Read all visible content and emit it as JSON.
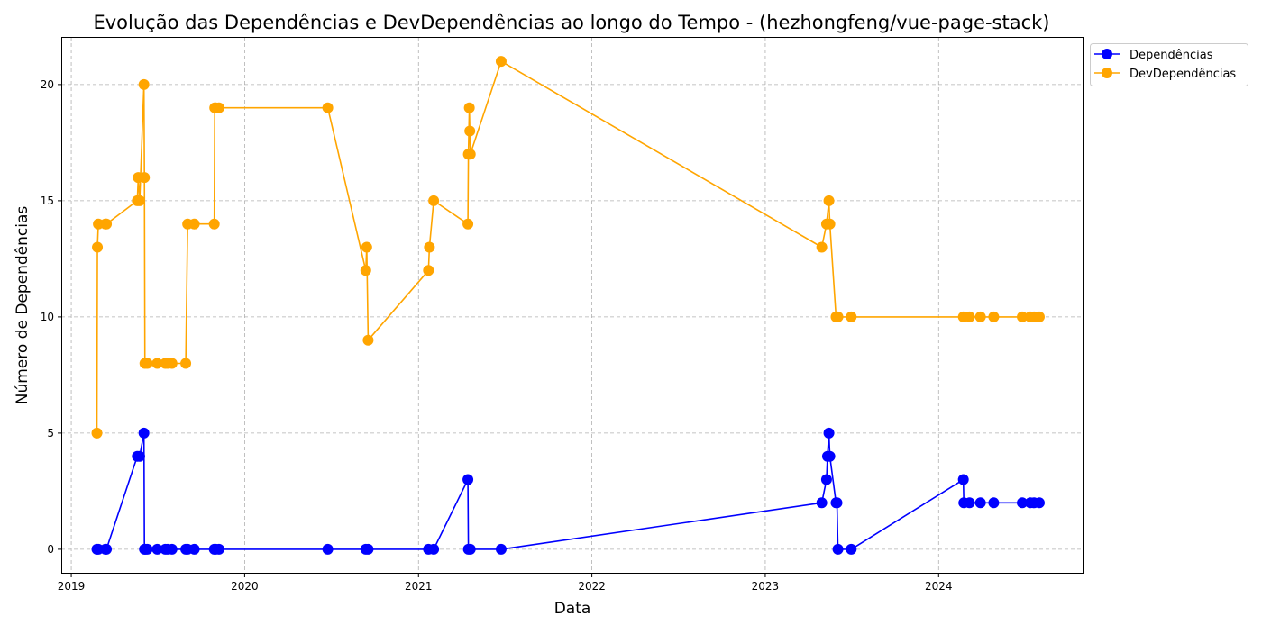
{
  "chart_data": {
    "type": "line",
    "title": "Evolução das Dependências e DevDependências ao longo do Tempo - (hezhongfeng/vue-page-stack)",
    "xlabel": "Data",
    "ylabel": "Número de Dependências",
    "x_ticks": [
      "2019",
      "2020",
      "2021",
      "2022",
      "2023",
      "2024"
    ],
    "y_ticks": [
      0,
      5,
      10,
      15,
      20
    ],
    "xlim": [
      "2018-12-11",
      "2024-11-01"
    ],
    "ylim": [
      -1.05,
      22.05
    ],
    "grid": true,
    "legend_position": "top-right (outside plot)",
    "series": [
      {
        "name": "Dependências",
        "color": "#0000ff",
        "points": [
          [
            "2019-02-24",
            0
          ],
          [
            "2019-02-27",
            0
          ],
          [
            "2019-03-14",
            0
          ],
          [
            "2019-03-16",
            0
          ],
          [
            "2019-05-20",
            4
          ],
          [
            "2019-05-25",
            4
          ],
          [
            "2019-06-03",
            5
          ],
          [
            "2019-06-04",
            0
          ],
          [
            "2019-06-06",
            0
          ],
          [
            "2019-06-10",
            0
          ],
          [
            "2019-07-01",
            0
          ],
          [
            "2019-07-18",
            0
          ],
          [
            "2019-07-23",
            0
          ],
          [
            "2019-08-01",
            0
          ],
          [
            "2019-08-30",
            0
          ],
          [
            "2019-09-03",
            0
          ],
          [
            "2019-09-17",
            0
          ],
          [
            "2019-10-29",
            0
          ],
          [
            "2019-11-01",
            0
          ],
          [
            "2019-11-08",
            0
          ],
          [
            "2020-06-24",
            0
          ],
          [
            "2020-09-12",
            0
          ],
          [
            "2020-09-17",
            0
          ],
          [
            "2021-01-22",
            0
          ],
          [
            "2021-02-02",
            0
          ],
          [
            "2021-04-15",
            3
          ],
          [
            "2021-04-16",
            0
          ],
          [
            "2021-04-20",
            0
          ],
          [
            "2021-06-24",
            0
          ],
          [
            "2023-04-30",
            2
          ],
          [
            "2023-05-10",
            3
          ],
          [
            "2023-05-12",
            4
          ],
          [
            "2023-05-15",
            5
          ],
          [
            "2023-05-17",
            4
          ],
          [
            "2023-05-30",
            2
          ],
          [
            "2023-06-01",
            2
          ],
          [
            "2023-06-03",
            0
          ],
          [
            "2023-07-01",
            0
          ],
          [
            "2024-02-22",
            3
          ],
          [
            "2024-02-23",
            2
          ],
          [
            "2024-03-06",
            2
          ],
          [
            "2024-03-29",
            2
          ],
          [
            "2024-04-26",
            2
          ],
          [
            "2024-06-25",
            2
          ],
          [
            "2024-07-12",
            2
          ],
          [
            "2024-07-20",
            2
          ],
          [
            "2024-07-31",
            2
          ]
        ]
      },
      {
        "name": "DevDependências",
        "color": "#ffa500",
        "points": [
          [
            "2019-02-24",
            5
          ],
          [
            "2019-02-25",
            13
          ],
          [
            "2019-02-27",
            14
          ],
          [
            "2019-03-14",
            14
          ],
          [
            "2019-03-16",
            14
          ],
          [
            "2019-05-20",
            15
          ],
          [
            "2019-05-22",
            16
          ],
          [
            "2019-05-25",
            15
          ],
          [
            "2019-06-03",
            20
          ],
          [
            "2019-06-04",
            16
          ],
          [
            "2019-06-05",
            8
          ],
          [
            "2019-06-10",
            8
          ],
          [
            "2019-07-01",
            8
          ],
          [
            "2019-07-18",
            8
          ],
          [
            "2019-07-23",
            8
          ],
          [
            "2019-08-01",
            8
          ],
          [
            "2019-08-30",
            8
          ],
          [
            "2019-09-03",
            14
          ],
          [
            "2019-09-17",
            14
          ],
          [
            "2019-10-29",
            14
          ],
          [
            "2019-10-30",
            19
          ],
          [
            "2019-11-01",
            19
          ],
          [
            "2019-11-08",
            19
          ],
          [
            "2020-06-24",
            19
          ],
          [
            "2020-09-12",
            12
          ],
          [
            "2020-09-14",
            13
          ],
          [
            "2020-09-17",
            9
          ],
          [
            "2021-01-22",
            12
          ],
          [
            "2021-01-24",
            13
          ],
          [
            "2021-02-02",
            15
          ],
          [
            "2021-04-15",
            14
          ],
          [
            "2021-04-16",
            17
          ],
          [
            "2021-04-18",
            19
          ],
          [
            "2021-04-19",
            18
          ],
          [
            "2021-04-20",
            17
          ],
          [
            "2021-06-24",
            21
          ],
          [
            "2023-04-30",
            13
          ],
          [
            "2023-05-10",
            14
          ],
          [
            "2023-05-15",
            15
          ],
          [
            "2023-05-17",
            14
          ],
          [
            "2023-05-30",
            10
          ],
          [
            "2023-06-03",
            10
          ],
          [
            "2023-07-01",
            10
          ],
          [
            "2024-02-22",
            10
          ],
          [
            "2024-03-06",
            10
          ],
          [
            "2024-03-29",
            10
          ],
          [
            "2024-04-26",
            10
          ],
          [
            "2024-06-25",
            10
          ],
          [
            "2024-07-12",
            10
          ],
          [
            "2024-07-20",
            10
          ],
          [
            "2024-07-31",
            10
          ]
        ]
      }
    ]
  }
}
